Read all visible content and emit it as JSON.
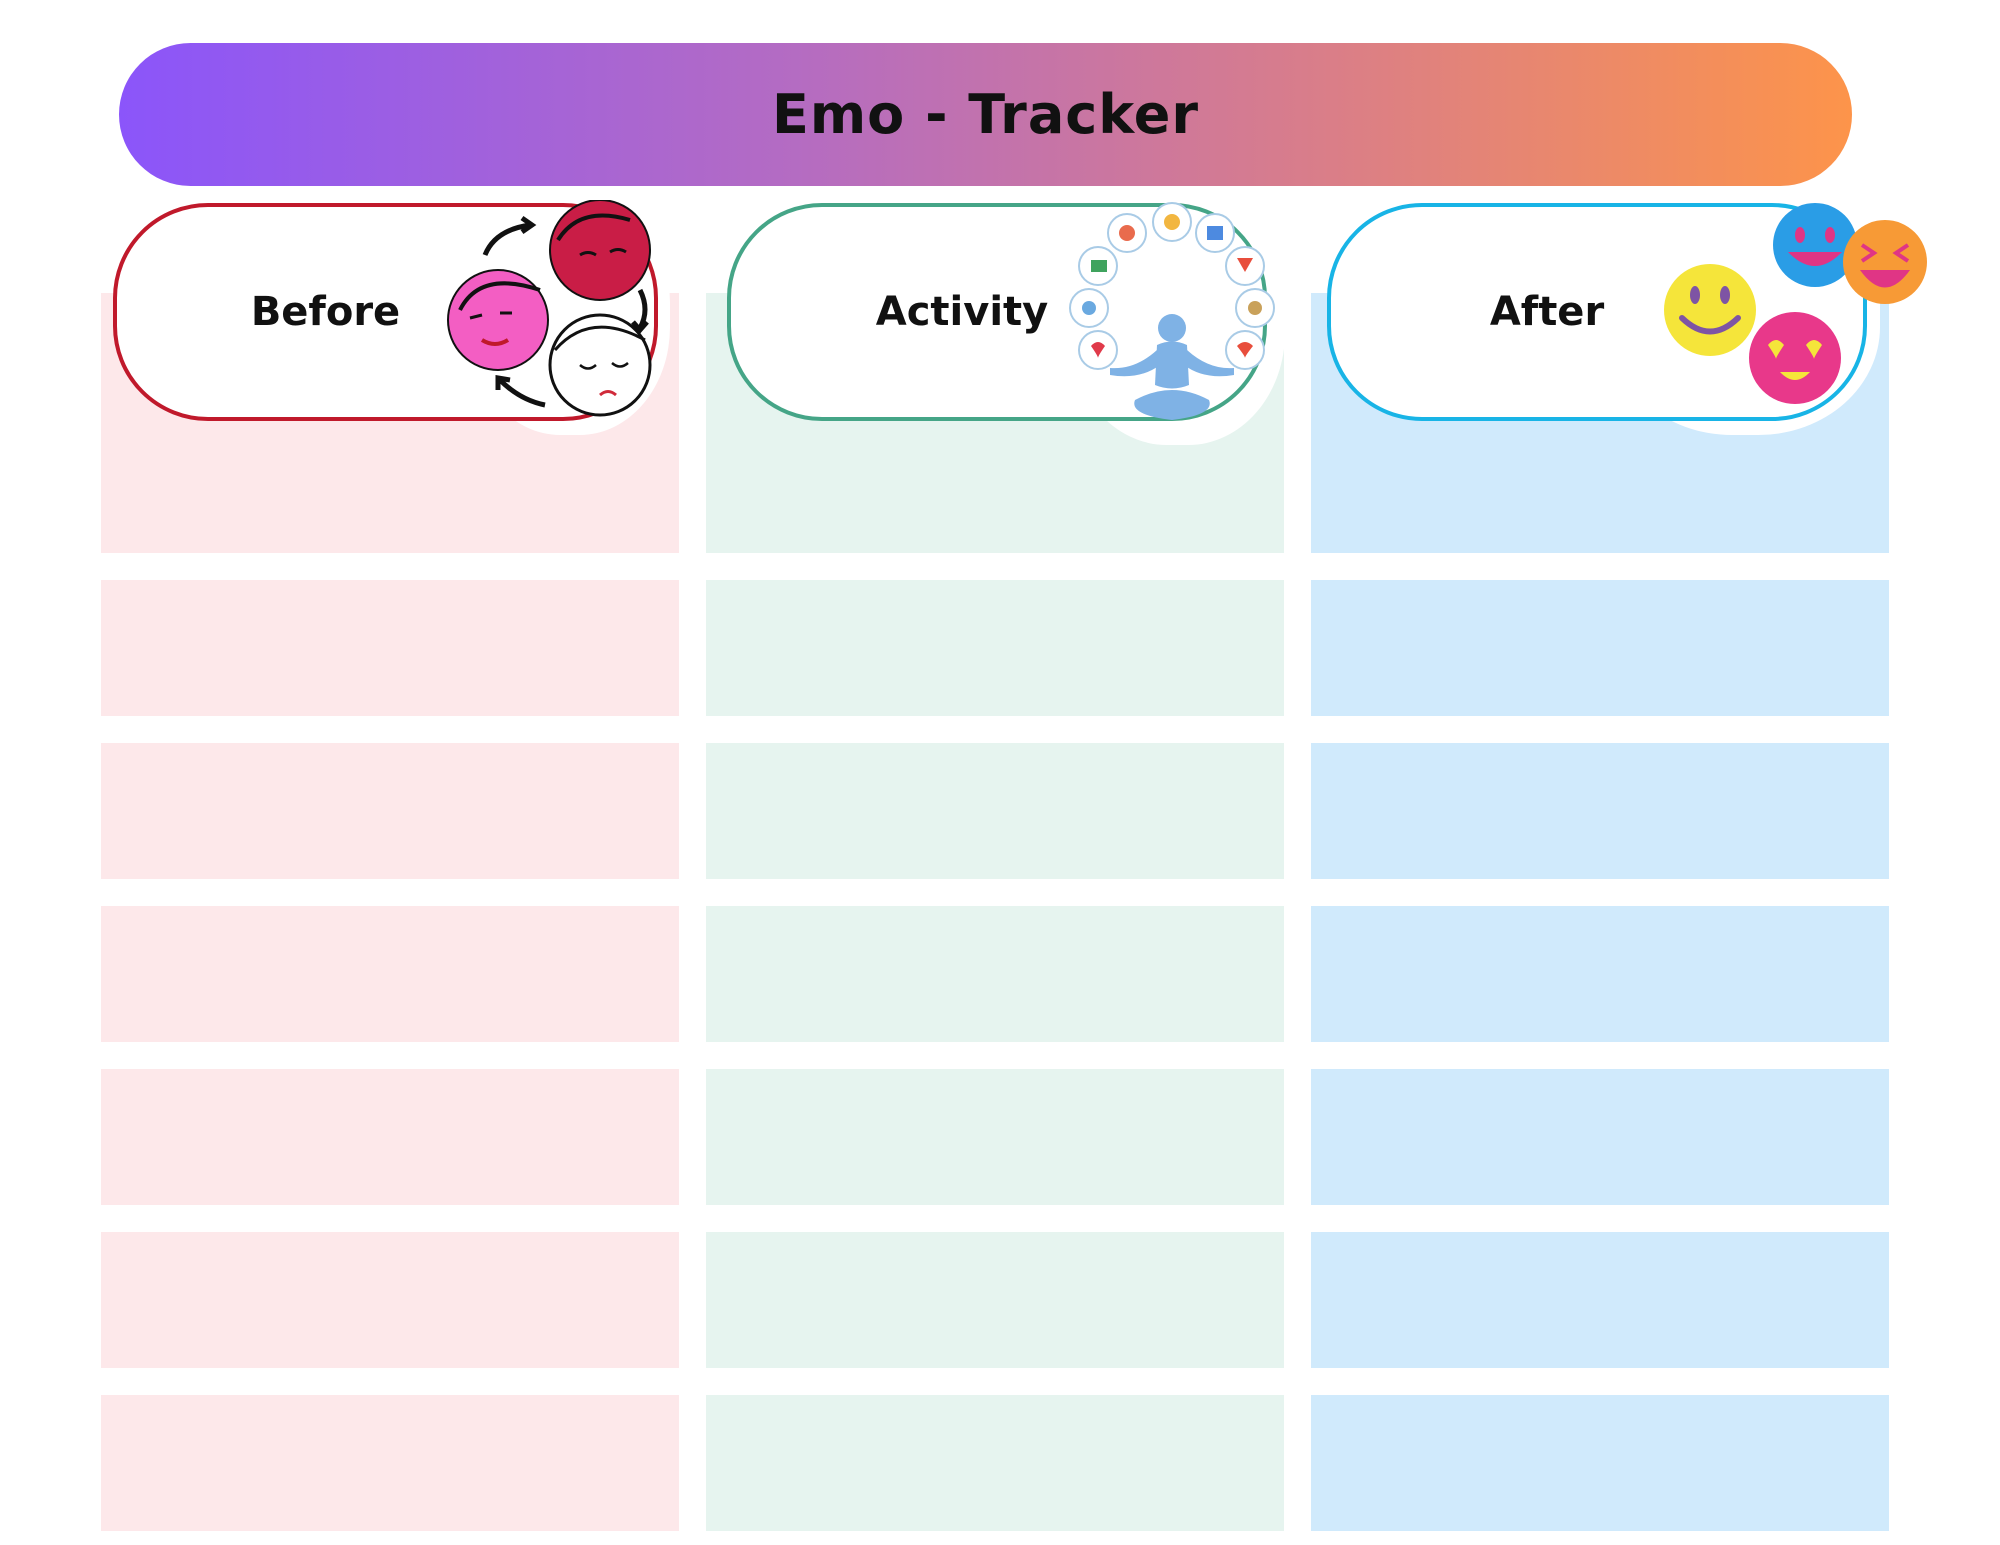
{
  "title": "Emo - Tracker",
  "columns": [
    {
      "key": "before",
      "label": "Before",
      "fill": "#fde8ea",
      "border": "#c0192b"
    },
    {
      "key": "activity",
      "label": "Activity",
      "fill": "#e6f4ef",
      "border": "#45a587"
    },
    {
      "key": "after",
      "label": "After",
      "fill": "#d0eafc",
      "border": "#18b4e6"
    }
  ],
  "rows": 7,
  "icons": {
    "before": "mood-cycle-faces-icon",
    "activity": "meditation-activities-icon",
    "after": "happy-emoji-icon"
  }
}
